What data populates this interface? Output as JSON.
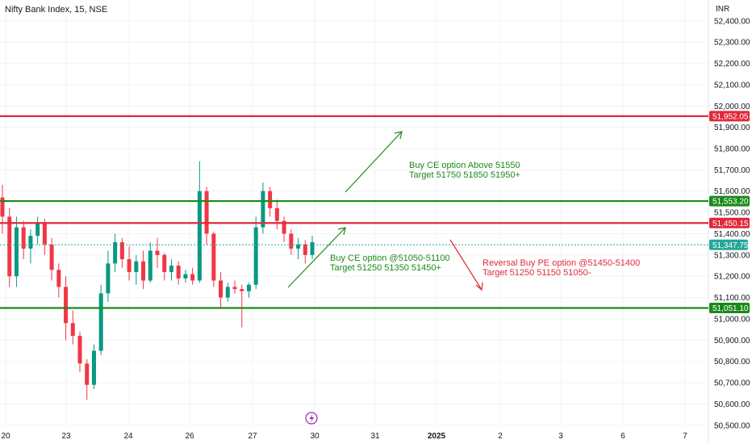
{
  "header": {
    "symbol_title": "Nifty Bank Index, 15, NSE",
    "currency": "INR"
  },
  "colors": {
    "up": "#089981",
    "down": "#f23645",
    "green_line": "#1b8a1b",
    "red_line": "#e0293a",
    "current_price": "#26a69a",
    "grid": "#f0f3fa",
    "text": "#131722",
    "event_icon": "#9c27b0"
  },
  "icons": [
    "lightning-event-icon"
  ],
  "chart_data": {
    "type": "candlestick",
    "y_axis": {
      "range": [
        50450,
        52475
      ],
      "tick_labels": [
        "52,400.00",
        "52,300.00",
        "52,200.00",
        "52,100.00",
        "52,000.00",
        "51,900.00",
        "51,800.00",
        "51,700.00",
        "51,600.00",
        "51,500.00",
        "51,400.00",
        "51,300.00",
        "51,200.00",
        "51,100.00",
        "51,000.00",
        "50,900.00",
        "50,800.00",
        "50,700.00",
        "50,600.00",
        "50,500.00"
      ],
      "tick_values": [
        52400,
        52300,
        52200,
        52100,
        52000,
        51900,
        51800,
        51700,
        51600,
        51500,
        51400,
        51300,
        51200,
        51100,
        51000,
        50900,
        50800,
        50700,
        50600,
        50500
      ]
    },
    "x_axis": {
      "tick_labels": [
        "20",
        "23",
        "24",
        "26",
        "27",
        "30",
        "31",
        "2025",
        "2",
        "3",
        "6",
        "7"
      ]
    },
    "horizontal_levels": [
      {
        "label": "51,952.05",
        "value": 51952.05,
        "color": "red"
      },
      {
        "label": "51,553.20",
        "value": 51553.2,
        "color": "green"
      },
      {
        "label": "51,450.15",
        "value": 51450.15,
        "color": "red"
      },
      {
        "label": "51,051.10",
        "value": 51051.1,
        "color": "green"
      }
    ],
    "current_price": {
      "label": "51,347.75",
      "value": 51347.75
    },
    "annotations": [
      {
        "line1": "Buy CE option Above 51550",
        "line2": "Target 51750 51850 51950+",
        "color": "green"
      },
      {
        "line1": "Buy CE option @51050-51100",
        "line2": "Target 51250 51350 51450+",
        "color": "green"
      },
      {
        "line1": "Reversal Buy PE option @51450-51400",
        "line2": "Target 51250 51150 51050-",
        "color": "red"
      }
    ],
    "candles": [
      [
        51570,
        51630,
        51400,
        51480
      ],
      [
        51480,
        51520,
        51150,
        51200
      ],
      [
        51200,
        51480,
        51150,
        51430
      ],
      [
        51430,
        51460,
        51280,
        51330
      ],
      [
        51330,
        51420,
        51260,
        51390
      ],
      [
        51390,
        51480,
        51350,
        51450
      ],
      [
        51450,
        51470,
        51300,
        51350
      ],
      [
        51350,
        51380,
        51180,
        51230
      ],
      [
        51230,
        51260,
        51100,
        51150
      ],
      [
        51150,
        51200,
        50900,
        50980
      ],
      [
        50980,
        51040,
        50880,
        50920
      ],
      [
        50920,
        50940,
        50750,
        50790
      ],
      [
        50790,
        50810,
        50620,
        50690
      ],
      [
        50690,
        50880,
        50670,
        50850
      ],
      [
        50850,
        51160,
        50830,
        51120
      ],
      [
        51120,
        51320,
        51080,
        51260
      ],
      [
        51260,
        51400,
        51220,
        51360
      ],
      [
        51360,
        51380,
        51240,
        51280
      ],
      [
        51280,
        51340,
        51180,
        51220
      ],
      [
        51220,
        51300,
        51160,
        51270
      ],
      [
        51270,
        51320,
        51140,
        51180
      ],
      [
        51180,
        51360,
        51170,
        51320
      ],
      [
        51320,
        51380,
        51240,
        51300
      ],
      [
        51300,
        51310,
        51180,
        51220
      ],
      [
        51220,
        51280,
        51180,
        51250
      ],
      [
        51250,
        51270,
        51160,
        51190
      ],
      [
        51190,
        51230,
        51170,
        51210
      ],
      [
        51210,
        51240,
        51160,
        51180
      ],
      [
        51180,
        51740,
        51170,
        51600
      ],
      [
        51600,
        51620,
        51350,
        51400
      ],
      [
        51400,
        51410,
        51150,
        51180
      ],
      [
        51180,
        51220,
        51050,
        51100
      ],
      [
        51100,
        51170,
        51080,
        51150
      ],
      [
        51150,
        51180,
        51120,
        51140
      ],
      [
        51140,
        51160,
        50960,
        51130
      ],
      [
        51130,
        51170,
        51100,
        51160
      ],
      [
        51160,
        51480,
        51140,
        51430
      ],
      [
        51430,
        51640,
        51400,
        51600
      ],
      [
        51600,
        51620,
        51480,
        51520
      ],
      [
        51520,
        51560,
        51420,
        51460
      ],
      [
        51460,
        51480,
        51360,
        51400
      ],
      [
        51400,
        51420,
        51300,
        51330
      ],
      [
        51330,
        51380,
        51280,
        51350
      ],
      [
        51350,
        51370,
        51260,
        51300
      ],
      [
        51300,
        51390,
        51280,
        51360
      ]
    ]
  }
}
